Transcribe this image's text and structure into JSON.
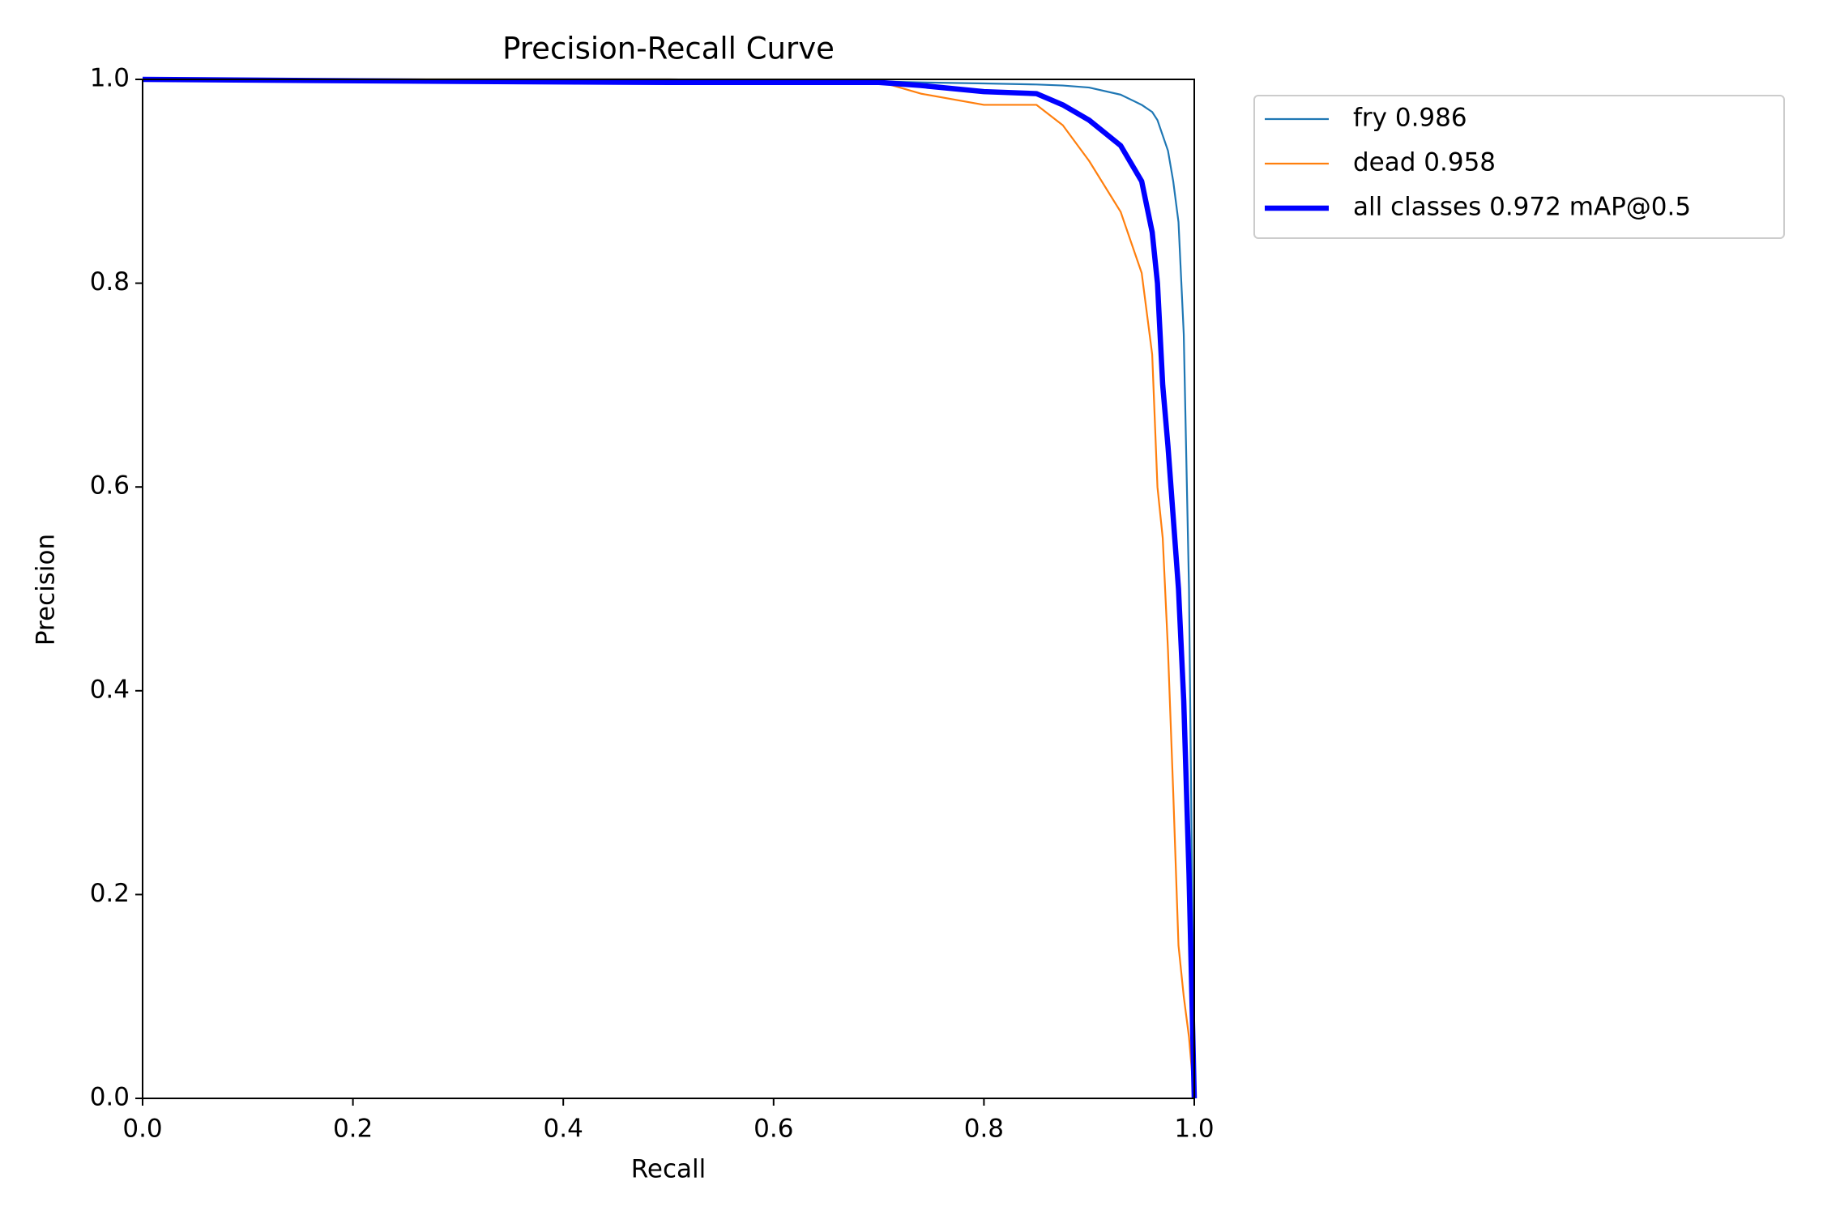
{
  "chart_data": {
    "type": "line",
    "title": "Precision-Recall Curve",
    "x_label": "Recall",
    "y_label": "Precision",
    "x": [
      0,
      0.3,
      0.5,
      0.7,
      0.74,
      0.8,
      0.85,
      0.875,
      0.9,
      0.93,
      0.95,
      0.96,
      0.965,
      0.97,
      0.975,
      0.98,
      0.985,
      0.99,
      0.995,
      1.0
    ],
    "series": [
      {
        "name": "fry 0.986",
        "color": "#1f77b4",
        "values": [
          1,
          1,
          1,
          0.998,
          0.997,
          0.996,
          0.995,
          0.994,
          0.992,
          0.985,
          0.975,
          0.968,
          0.96,
          0.945,
          0.93,
          0.9,
          0.86,
          0.75,
          0.5,
          0
        ]
      },
      {
        "name": "dead 0.958",
        "color": "#ff7f0e",
        "values": [
          1,
          1,
          1,
          0.998,
          0.986,
          0.975,
          0.975,
          0.955,
          0.92,
          0.87,
          0.81,
          0.73,
          0.6,
          0.55,
          0.44,
          0.3,
          0.15,
          0.1,
          0.06,
          0
        ]
      },
      {
        "name": "all classes 0.972 mAP@0.5",
        "color": "#0000ff",
        "values": [
          1,
          0.998,
          0.997,
          0.997,
          0.994,
          0.988,
          0.986,
          0.975,
          0.96,
          0.935,
          0.9,
          0.85,
          0.8,
          0.7,
          0.64,
          0.57,
          0.5,
          0.39,
          0.22,
          0
        ]
      }
    ],
    "xlim": [
      0,
      1
    ],
    "ylim": [
      0,
      1
    ],
    "xticks": [
      {
        "value": 0,
        "label": "0.0"
      },
      0.2,
      0.4,
      0.6,
      0.8,
      {
        "value": 1,
        "label": "1.0"
      }
    ],
    "yticks": [
      {
        "value": 0,
        "label": "0.0"
      },
      0.2,
      0.4,
      0.6,
      0.8,
      {
        "value": 1,
        "label": "1.0"
      }
    ],
    "grid": false,
    "legend": "outside upper right"
  }
}
